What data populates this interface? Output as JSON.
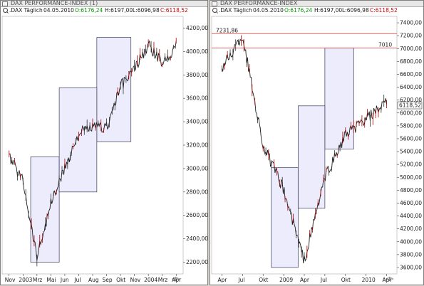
{
  "windows": [
    {
      "id": "left",
      "title": "DAX PERFORMANCE-INDEX (1)",
      "info": {
        "instrument": ".DAX Täglich",
        "date": "04.05.2010",
        "open": "O:6176,24",
        "high": "H:6197,00",
        "low": "L:6096,98",
        "close": "C:6118,52"
      },
      "y_ticks": [
        "4200,00",
        "4000,00",
        "3800,00",
        "3600,00",
        "3400,00",
        "3200,00",
        "3000,00",
        "2800,00",
        "2600,00",
        "2400,00",
        "2200,00"
      ],
      "x_ticks": [
        "Nov",
        "2003",
        "Mrz",
        "Mai",
        "Jun",
        "Jul",
        "Aug",
        "Sep",
        "Okt",
        "Nov",
        "2004",
        "Mrz",
        "Apr"
      ],
      "ymin": 2100,
      "ymax": 4300
    },
    {
      "id": "right",
      "title": "DAX PERFORMANCE-INDEX",
      "info": {
        "instrument": ".DAX Täglich",
        "date": "04.05.2010",
        "open": "O:6176,24",
        "high": "H:6197,00",
        "low": "L:6096,98",
        "close": "C:6118,52"
      },
      "y_ticks": [
        "7400,00",
        "7200,00",
        "7000,00",
        "6800,00",
        "6600,00",
        "6400,00",
        "6200,00",
        "6000,00",
        "5800,00",
        "5600,00",
        "5400,00",
        "5200,00",
        "5000,00",
        "4800,00",
        "4600,00",
        "4400,00",
        "4200,00",
        "4000,00",
        "3800,00",
        "3600,00"
      ],
      "x_ticks": [
        "Apr",
        "Jul",
        "Okt",
        "2009",
        "Apr",
        "Jul",
        "Okt",
        "2010",
        "Apr"
      ],
      "ymin": 3500,
      "ymax": 7500,
      "hlines": [
        {
          "value": 7231.86,
          "label": "7231,86"
        },
        {
          "value": 7010,
          "label": "7010"
        }
      ],
      "last_price_label": "6118,52"
    }
  ],
  "chart_data": [
    {
      "type": "line",
      "title": "DAX PERFORMANCE-INDEX (1)",
      "x": [
        "Nov",
        "2003",
        "Mrz",
        "Mai",
        "Jun",
        "Jul",
        "Aug",
        "Sep",
        "Okt",
        "Nov",
        "2004",
        "Mrz",
        "Apr"
      ],
      "values": [
        3100,
        2900,
        2250,
        2700,
        3000,
        3300,
        3350,
        3350,
        3700,
        3850,
        4050,
        3900,
        4050
      ],
      "ylim": [
        2100,
        4300
      ],
      "boxes": [
        {
          "x0": 2.05,
          "x1": 4.1,
          "y0": 2200,
          "y1": 3100
        },
        {
          "x0": 4.1,
          "x1": 6.8,
          "y0": 2800,
          "y1": 3690
        },
        {
          "x0": 6.8,
          "x1": 9.25,
          "y0": 3230,
          "y1": 4120
        }
      ]
    },
    {
      "type": "line",
      "title": "DAX PERFORMANCE-INDEX",
      "x": [
        "Apr",
        "Jul",
        "Okt",
        "2009",
        "Apr",
        "Jul",
        "Okt",
        "2010",
        "Apr"
      ],
      "values": [
        6700,
        7200,
        5500,
        4800,
        3700,
        5000,
        5650,
        5900,
        6150
      ],
      "ylim": [
        3500,
        7500
      ],
      "boxes": [
        {
          "x0": 2.9,
          "x1": 4.2,
          "y0": 3600,
          "y1": 5150
        },
        {
          "x0": 4.2,
          "x1": 5.5,
          "y0": 4520,
          "y1": 6110
        },
        {
          "x0": 5.5,
          "x1": 6.9,
          "y0": 5440,
          "y1": 7010
        }
      ]
    }
  ]
}
